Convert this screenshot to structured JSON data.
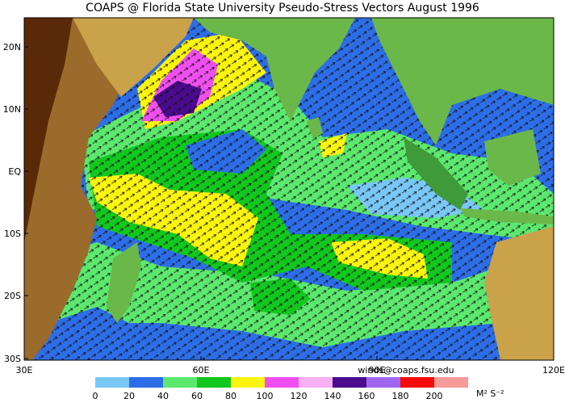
{
  "title": "COAPS @ Florida State University Pseudo-Stress Vectors  August 1996",
  "lon_labels": [
    "30E",
    "60E",
    "90E",
    "120E"
  ],
  "lat_labels": [
    "20N",
    "10N",
    "EQ",
    "10S",
    "20S",
    "30S"
  ],
  "colorbar": {
    "ticks": [
      0,
      20,
      40,
      60,
      80,
      100,
      120,
      140,
      160,
      180,
      200
    ],
    "colors": [
      "#79c7f7",
      "#2d6ee8",
      "#5ce86e",
      "#12c71e",
      "#fbf50f",
      "#f04ff0",
      "#f7b0f2",
      "#4a0b8e",
      "#a066f0",
      "#f50a0a",
      "#f79a9a"
    ]
  },
  "credit": "winds@coaps.fsu.edu",
  "units": "M² S⁻²"
}
